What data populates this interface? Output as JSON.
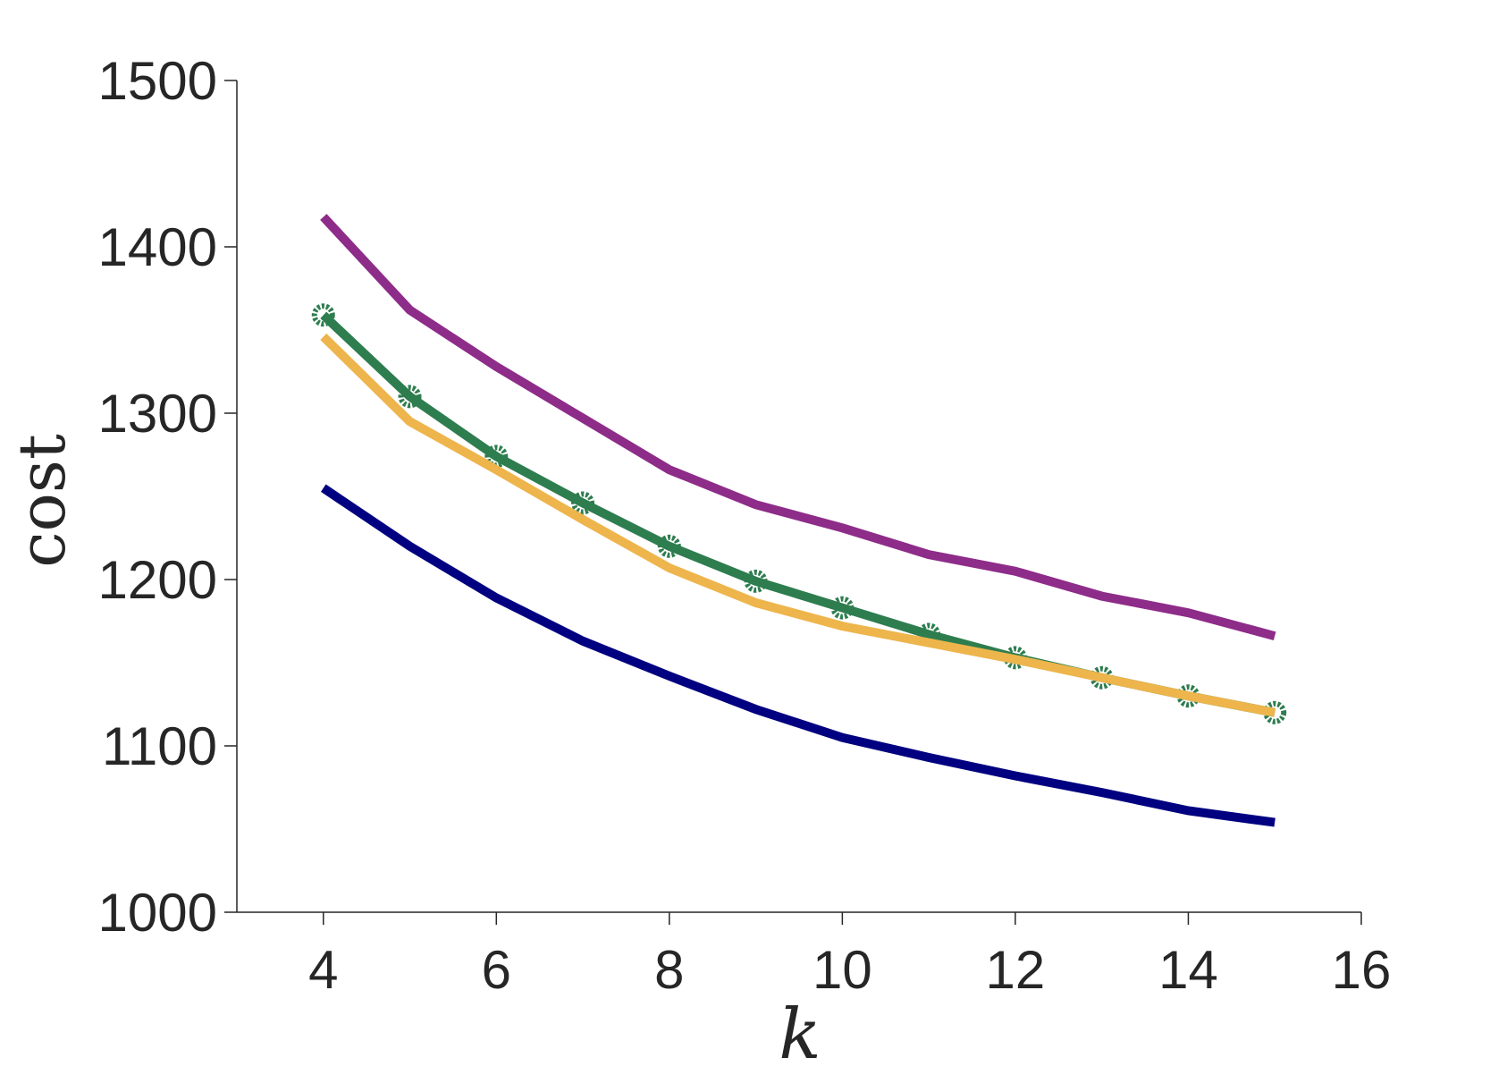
{
  "chart_data": {
    "type": "line",
    "xlabel": "k",
    "ylabel": "cost",
    "xlim": [
      3,
      16
    ],
    "ylim": [
      1000,
      1500
    ],
    "x_ticks": [
      4,
      6,
      8,
      10,
      12,
      14,
      16
    ],
    "y_ticks": [
      1000,
      1100,
      1200,
      1300,
      1400,
      1500
    ],
    "x_tick_labels": [
      "4",
      "6",
      "8",
      "10",
      "12",
      "14",
      "16"
    ],
    "y_tick_labels": [
      "1000",
      "1100",
      "1200",
      "1300",
      "1400",
      "1500"
    ],
    "grid": false,
    "legend": "none",
    "x": [
      4,
      5,
      6,
      7,
      8,
      9,
      10,
      11,
      12,
      13,
      14,
      15
    ],
    "series": [
      {
        "color": "#8E2C89",
        "marker": "none",
        "values": [
          1418,
          1362,
          1328,
          1297,
          1266,
          1245,
          1231,
          1215,
          1205,
          1190,
          1180,
          1166
        ]
      },
      {
        "color": "#2E7D4F",
        "marker": "circle",
        "values": [
          1359,
          1310,
          1274,
          1246,
          1220,
          1199,
          1183,
          1167,
          1153,
          1141,
          1130,
          1120
        ]
      },
      {
        "color": "#EDB54C",
        "marker": "none",
        "values": [
          1346,
          1295,
          1266,
          1236,
          1207,
          1186,
          1172,
          1162,
          1152,
          1141,
          1130,
          1120
        ]
      },
      {
        "color": "#000080",
        "marker": "none",
        "values": [
          1255,
          1220,
          1189,
          1163,
          1142,
          1122,
          1105,
          1093,
          1082,
          1072,
          1061,
          1054
        ]
      }
    ]
  }
}
